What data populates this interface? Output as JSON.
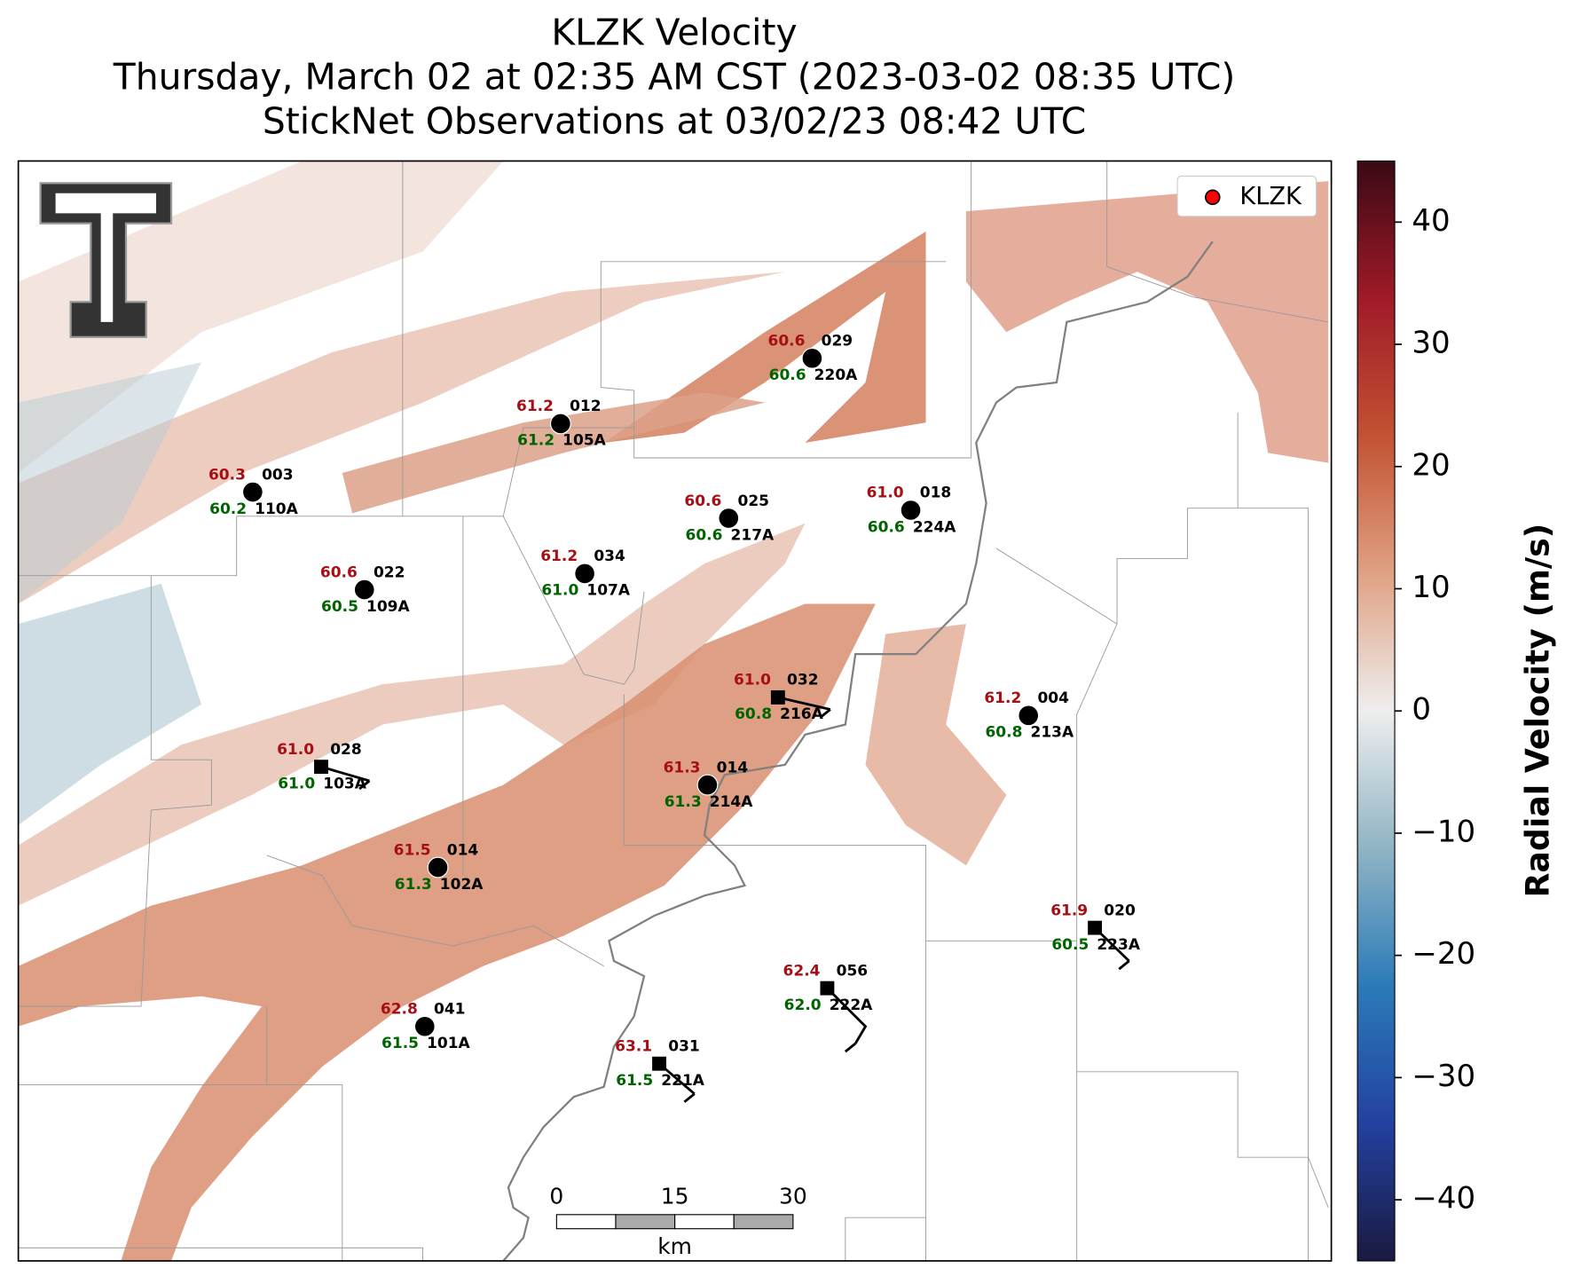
{
  "title_lines": [
    "KLZK Velocity",
    "Thursday, March 02 at 02:35 AM CST (2023-03-02 08:35 UTC)",
    "StickNet Observations at 03/02/23 08:42 UTC"
  ],
  "legend": {
    "label": "KLZK",
    "color": "#ff0000",
    "corner": "upper right"
  },
  "colorbar": {
    "label": "Radial Velocity (m/s)",
    "lim": [
      -45,
      45
    ],
    "ticks": [
      {
        "value": -40,
        "label": "−40"
      },
      {
        "value": -30,
        "label": "−30"
      },
      {
        "value": -20,
        "label": "−20"
      },
      {
        "value": -10,
        "label": "−10"
      },
      0,
      10,
      20,
      30,
      40
    ],
    "colors": [
      "#1a1a40",
      "#2341a0",
      "#2b7bb8",
      "#90b4c4",
      "#eeeeee",
      "#dfa183",
      "#c25232",
      "#a01a28",
      "#3a0a14"
    ]
  },
  "scale_bar": {
    "ticks": [
      "0",
      "15",
      "30"
    ],
    "unit": "km"
  },
  "stations": [
    {
      "name": "110A",
      "id": "003",
      "temperature": 60.3,
      "dewpoint": 60.2
    },
    {
      "name": "109A",
      "id": "022",
      "temperature": 60.6,
      "dewpoint": 60.5
    },
    {
      "name": "105A",
      "id": "012",
      "temperature": 61.2,
      "dewpoint": 61.2
    },
    {
      "name": "220A",
      "id": "029",
      "temperature": 60.6,
      "dewpoint": 60.6
    },
    {
      "name": "107A",
      "id": "034",
      "temperature": 61.2,
      "dewpoint": 61.0
    },
    {
      "name": "217A",
      "id": "025",
      "temperature": 60.6,
      "dewpoint": 60.6
    },
    {
      "name": "224A",
      "id": "018",
      "temperature": 61.0,
      "dewpoint": 60.6
    },
    {
      "name": "216A",
      "id": "032",
      "temperature": 61.0,
      "dewpoint": 60.8
    },
    {
      "name": "213A",
      "id": "004",
      "temperature": 61.2,
      "dewpoint": 60.8
    },
    {
      "name": "103A",
      "id": "028",
      "temperature": 61.0,
      "dewpoint": 61.0
    },
    {
      "name": "214A",
      "id": "014",
      "temperature": 61.3,
      "dewpoint": 61.3
    },
    {
      "name": "102A",
      "id": "014",
      "temperature": 61.5,
      "dewpoint": 61.3
    },
    {
      "name": "223A",
      "id": "020",
      "temperature": 61.9,
      "dewpoint": 60.5
    },
    {
      "name": "222A",
      "id": "056",
      "temperature": 62.4,
      "dewpoint": 62.0
    },
    {
      "name": "101A",
      "id": "041",
      "temperature": 62.8,
      "dewpoint": 61.5
    },
    {
      "name": "221A",
      "id": "031",
      "temperature": 63.1,
      "dewpoint": 61.5
    }
  ]
}
